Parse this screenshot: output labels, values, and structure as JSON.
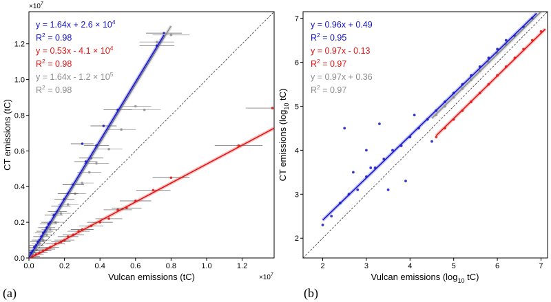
{
  "chart_data": [
    {
      "panel": "(a)",
      "type": "scatter",
      "xlabel": "Vulcan emissions (tC)",
      "ylabel": "CT emissions (tC)",
      "x_multiplier": "×10",
      "x_exponent": "7",
      "y_multiplier": "×10",
      "y_exponent": "7",
      "xlim": [
        0,
        1.38
      ],
      "ylim": [
        0,
        1.38
      ],
      "xticks": [
        "0.0",
        "0.2",
        "0.4",
        "0.6",
        "0.8",
        "1.0",
        "1.2"
      ],
      "yticks": [
        "0.0",
        "0.2",
        "0.4",
        "0.6",
        "0.8",
        "1.0",
        "1.2"
      ],
      "one_to_one_line": true,
      "series": [
        {
          "color": "#1414c8",
          "fit": {
            "slope": 1.64,
            "intercept": 0.0026
          },
          "x": [
            0.01,
            0.02,
            0.03,
            0.04,
            0.05,
            0.06,
            0.07,
            0.08,
            0.09,
            0.1,
            0.11,
            0.12,
            0.14,
            0.16,
            0.18,
            0.2,
            0.22,
            0.25,
            0.3,
            0.32,
            0.35,
            0.38,
            0.42,
            0.5,
            0.72,
            0.76
          ],
          "y": [
            0.03,
            0.04,
            0.06,
            0.07,
            0.09,
            0.1,
            0.12,
            0.14,
            0.15,
            0.17,
            0.19,
            0.2,
            0.24,
            0.26,
            0.29,
            0.33,
            0.36,
            0.41,
            0.64,
            0.54,
            0.56,
            0.63,
            0.74,
            0.83,
            1.19,
            1.26
          ]
        },
        {
          "color": "#e01414",
          "fit": {
            "slope": 0.53,
            "intercept": -0.0041
          },
          "x": [
            0.02,
            0.04,
            0.06,
            0.08,
            0.1,
            0.12,
            0.15,
            0.18,
            0.2,
            0.22,
            0.25,
            0.28,
            0.3,
            0.35,
            0.4,
            0.45,
            0.5,
            0.55,
            0.6,
            0.7,
            0.8,
            1.18,
            1.37
          ],
          "y": [
            0.01,
            0.02,
            0.03,
            0.04,
            0.05,
            0.06,
            0.08,
            0.09,
            0.1,
            0.12,
            0.13,
            0.15,
            0.16,
            0.18,
            0.2,
            0.22,
            0.27,
            0.28,
            0.32,
            0.38,
            0.45,
            0.63,
            0.84
          ]
        },
        {
          "color": "#8c8c8c",
          "fit": {
            "slope": 1.64,
            "intercept": -0.012
          },
          "x": [
            0.02,
            0.04,
            0.06,
            0.08,
            0.1,
            0.12,
            0.15,
            0.18,
            0.22,
            0.26,
            0.3,
            0.34,
            0.38,
            0.45,
            0.52,
            0.6,
            0.65,
            0.72,
            0.8
          ],
          "y": [
            0.02,
            0.05,
            0.08,
            0.1,
            0.13,
            0.16,
            0.2,
            0.25,
            0.3,
            0.36,
            0.42,
            0.48,
            0.53,
            0.61,
            0.72,
            0.85,
            0.83,
            1.21,
            1.25
          ]
        }
      ]
    },
    {
      "panel": "(b)",
      "type": "scatter",
      "xlabel": "Vulcan emissions (log",
      "xlabel_sub": "10",
      "xlabel_end": " tC)",
      "ylabel": "CT emissions (log",
      "ylabel_sub": "10",
      "ylabel_end": " tC)",
      "xlim": [
        1.55,
        7.15
      ],
      "ylim": [
        1.55,
        7.15
      ],
      "xticks": [
        "2",
        "3",
        "4",
        "5",
        "6",
        "7"
      ],
      "yticks": [
        "2",
        "3",
        "4",
        "5",
        "6",
        "7"
      ],
      "one_to_one_line": true,
      "series": [
        {
          "color": "#1414c8",
          "fit": {
            "slope": 0.96,
            "intercept": 0.49,
            "x_range": [
              2.0,
              6.9
            ]
          },
          "x": [
            2.0,
            2.2,
            2.4,
            2.6,
            2.8,
            3.0,
            3.1,
            3.2,
            3.4,
            3.6,
            3.8,
            4.0,
            4.2,
            4.4,
            4.6,
            4.8,
            5.0,
            5.2,
            5.4,
            5.6,
            5.8,
            6.0,
            6.2,
            6.4,
            6.6,
            6.8,
            2.5,
            3.0,
            3.3,
            2.7,
            3.5,
            4.1,
            4.5,
            3.9
          ],
          "y": [
            2.3,
            2.5,
            2.8,
            3.0,
            3.1,
            3.4,
            3.6,
            3.6,
            3.8,
            4.0,
            4.1,
            4.3,
            4.5,
            4.7,
            4.9,
            5.1,
            5.3,
            5.5,
            5.7,
            5.9,
            6.1,
            6.3,
            6.5,
            6.6,
            6.8,
            7.0,
            4.5,
            4.0,
            4.6,
            3.5,
            3.1,
            4.8,
            4.2,
            3.3
          ]
        },
        {
          "color": "#e01414",
          "fit": {
            "slope": 0.97,
            "intercept": -0.13,
            "x_range": [
              4.6,
              7.1
            ]
          },
          "x": [
            4.6,
            4.8,
            5.0,
            5.2,
            5.4,
            5.6,
            5.8,
            6.0,
            6.2,
            6.4,
            6.6,
            6.8,
            7.0
          ],
          "y": [
            4.3,
            4.5,
            4.7,
            4.9,
            5.1,
            5.3,
            5.5,
            5.7,
            5.9,
            6.1,
            6.3,
            6.5,
            6.7
          ]
        },
        {
          "color": "#8c8c8c",
          "fit": {
            "slope": 0.97,
            "intercept": 0.36,
            "x_range": [
              4.5,
              7.0
            ]
          },
          "x": [
            4.6,
            4.8,
            5.0,
            5.2,
            5.4,
            5.6,
            5.8,
            6.0,
            6.2,
            6.4,
            6.6,
            6.8
          ],
          "y": [
            4.8,
            5.0,
            5.2,
            5.4,
            5.6,
            5.8,
            6.0,
            6.2,
            6.4,
            6.6,
            6.8,
            7.0
          ]
        }
      ]
    }
  ],
  "annotations": {
    "a": [
      {
        "text": "y = 1.64x + 2.6 × 10",
        "sup": "4",
        "color": "#1414c8"
      },
      {
        "text": "R",
        "sup": "2",
        "rest": " = 0.98",
        "color": "#1414c8"
      },
      {
        "text": "y = 0.53x - 4.1 × 10",
        "sup": "4",
        "color": "#e01414"
      },
      {
        "text": "R",
        "sup": "2",
        "rest": " = 0.98",
        "color": "#e01414"
      },
      {
        "text": "y = 1.64x - 1.2 × 10",
        "sup": "5",
        "color": "#8c8c8c"
      },
      {
        "text": "R",
        "sup": "2",
        "rest": " = 0.98",
        "color": "#8c8c8c"
      }
    ],
    "b": [
      {
        "text": "y = 0.96x + 0.49",
        "color": "#1414c8"
      },
      {
        "text": "R",
        "sup": "2",
        "rest": " = 0.95",
        "color": "#1414c8"
      },
      {
        "text": "y = 0.97x - 0.13",
        "color": "#e01414"
      },
      {
        "text": "R",
        "sup": "2",
        "rest": " = 0.97",
        "color": "#e01414"
      },
      {
        "text": "y = 0.97x + 0.36",
        "color": "#8c8c8c"
      },
      {
        "text": "R",
        "sup": "2",
        "rest": " = 0.97",
        "color": "#8c8c8c"
      }
    ]
  },
  "colors": {
    "blue": "#1414c8",
    "red": "#e01414",
    "gray": "#8c8c8c"
  }
}
